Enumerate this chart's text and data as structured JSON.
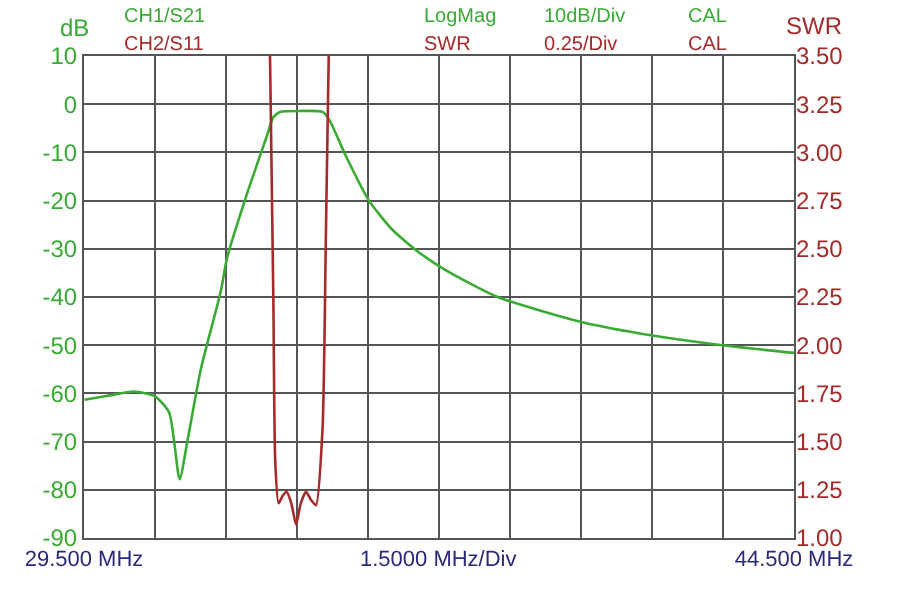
{
  "chart_data": {
    "type": "line",
    "xlabel": "1.5000 MHz/Div",
    "ylabel": "dB",
    "y2label": "SWR",
    "annotations": [
      "CH1/S21",
      "LogMag",
      "10dB/Div",
      "CAL",
      "CH2/S11",
      "SWR",
      "0.25/Div",
      "CAL"
    ],
    "xlim": [
      29.5,
      44.5
    ],
    "xticks": [
      {
        "value": 29.5,
        "label": "29.500 MHz"
      },
      {
        "value": 31,
        "label": null
      },
      {
        "value": 32.5,
        "label": null
      },
      {
        "value": 34,
        "label": null
      },
      {
        "value": 35.5,
        "label": null
      },
      {
        "value": 37,
        "label": null
      },
      {
        "value": 38.5,
        "label": null
      },
      {
        "value": 40,
        "label": null
      },
      {
        "value": 41.5,
        "label": null
      },
      {
        "value": 43,
        "label": null
      },
      {
        "value": 44.5,
        "label": "44.500 MHz"
      }
    ],
    "ylim": [
      -90,
      10
    ],
    "yticks": [
      10,
      0,
      -10,
      -20,
      -30,
      -40,
      -50,
      -60,
      -70,
      -80,
      -90
    ],
    "y2lim": [
      1,
      3.5
    ],
    "y2ticks": [
      {
        "value": 1,
        "label": "1.00"
      },
      {
        "value": 1.25,
        "label": "1.25"
      },
      {
        "value": 1.5,
        "label": "1.50"
      },
      {
        "value": 1.75,
        "label": "1.75"
      },
      {
        "value": 2,
        "label": "2.00"
      },
      {
        "value": 2.25,
        "label": "2.25"
      },
      {
        "value": 2.5,
        "label": "2.50"
      },
      {
        "value": 2.75,
        "label": "2.75"
      },
      {
        "value": 3,
        "label": "3.00"
      },
      {
        "value": 3.25,
        "label": "3.25"
      },
      {
        "value": 3.5,
        "label": "3.50"
      }
    ],
    "grid": true,
    "marker": "none",
    "line_style": "solid",
    "series": [
      {
        "color": "#3aaa35",
        "x": [
          29.51,
          30.0,
          30.56,
          31.0,
          31.3,
          31.52,
          31.69,
          31.97,
          32.39,
          32.52,
          32.94,
          33.36,
          33.5,
          33.64,
          34.06,
          34.54,
          34.69,
          35.03,
          35.52,
          36.01,
          36.57,
          37.12,
          38.24,
          40.05,
          41.51,
          42.98,
          44.5
        ],
        "values": [
          -61.3,
          -60.5,
          -59.6,
          -60.6,
          -64,
          -77.8,
          -69.6,
          -54.9,
          -38.8,
          -32,
          -18.7,
          -6.7,
          -2.7,
          -1.6,
          -1.4,
          -1.6,
          -3.4,
          -10.7,
          -20,
          -26,
          -30.7,
          -34.3,
          -40,
          -45.3,
          -48,
          -50,
          -51.6
        ]
      },
      {
        "color": "#a52a2a",
        "axis": "y2",
        "x": [
          33.43,
          33.5,
          33.54,
          33.61,
          33.7,
          33.78,
          33.88,
          33.98,
          34.08,
          34.19,
          34.29,
          34.4,
          34.54,
          34.61,
          34.67
        ],
        "values": [
          3.5,
          2.24,
          1.4,
          1.18,
          1.22,
          1.24,
          1.18,
          1.07,
          1.18,
          1.24,
          1.2,
          1.17,
          1.57,
          2.57,
          3.5
        ]
      }
    ]
  }
}
